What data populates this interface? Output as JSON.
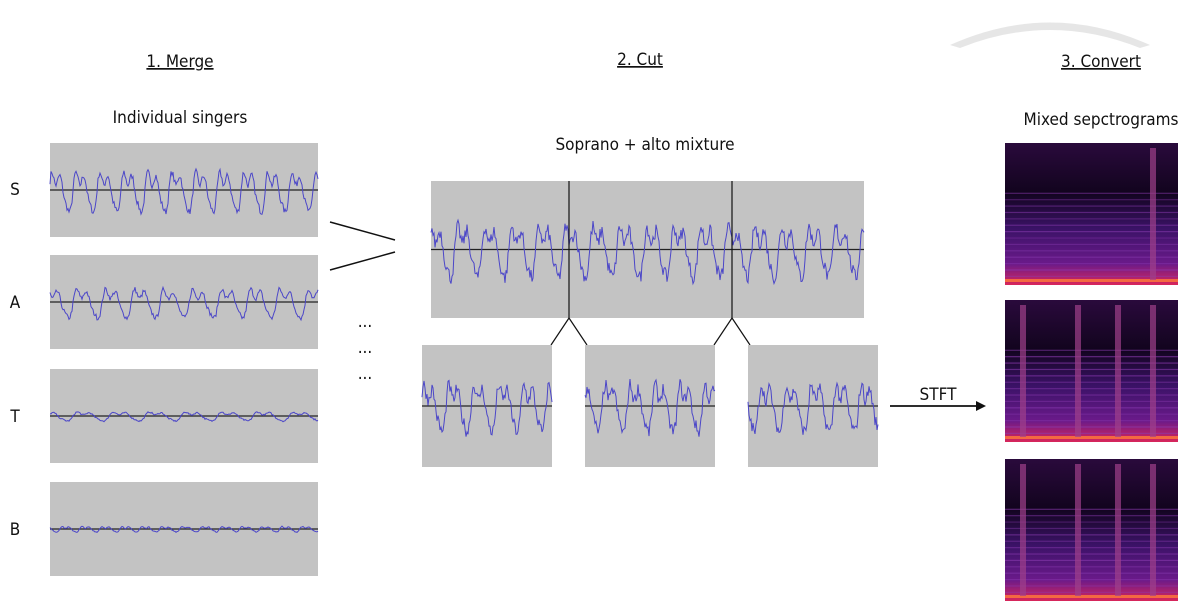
{
  "steps": [
    {
      "title": "1. Merge",
      "subtitle": "Individual singers"
    },
    {
      "title": "2. Cut",
      "subtitle": "Soprano + alto mixture"
    },
    {
      "title": "3. Convert",
      "subtitle": "Mixed sepctrograms"
    }
  ],
  "singers": [
    "S",
    "A",
    "T",
    "B"
  ],
  "ellipsis": [
    "...",
    "...",
    "..."
  ],
  "transform_label": "STFT"
}
